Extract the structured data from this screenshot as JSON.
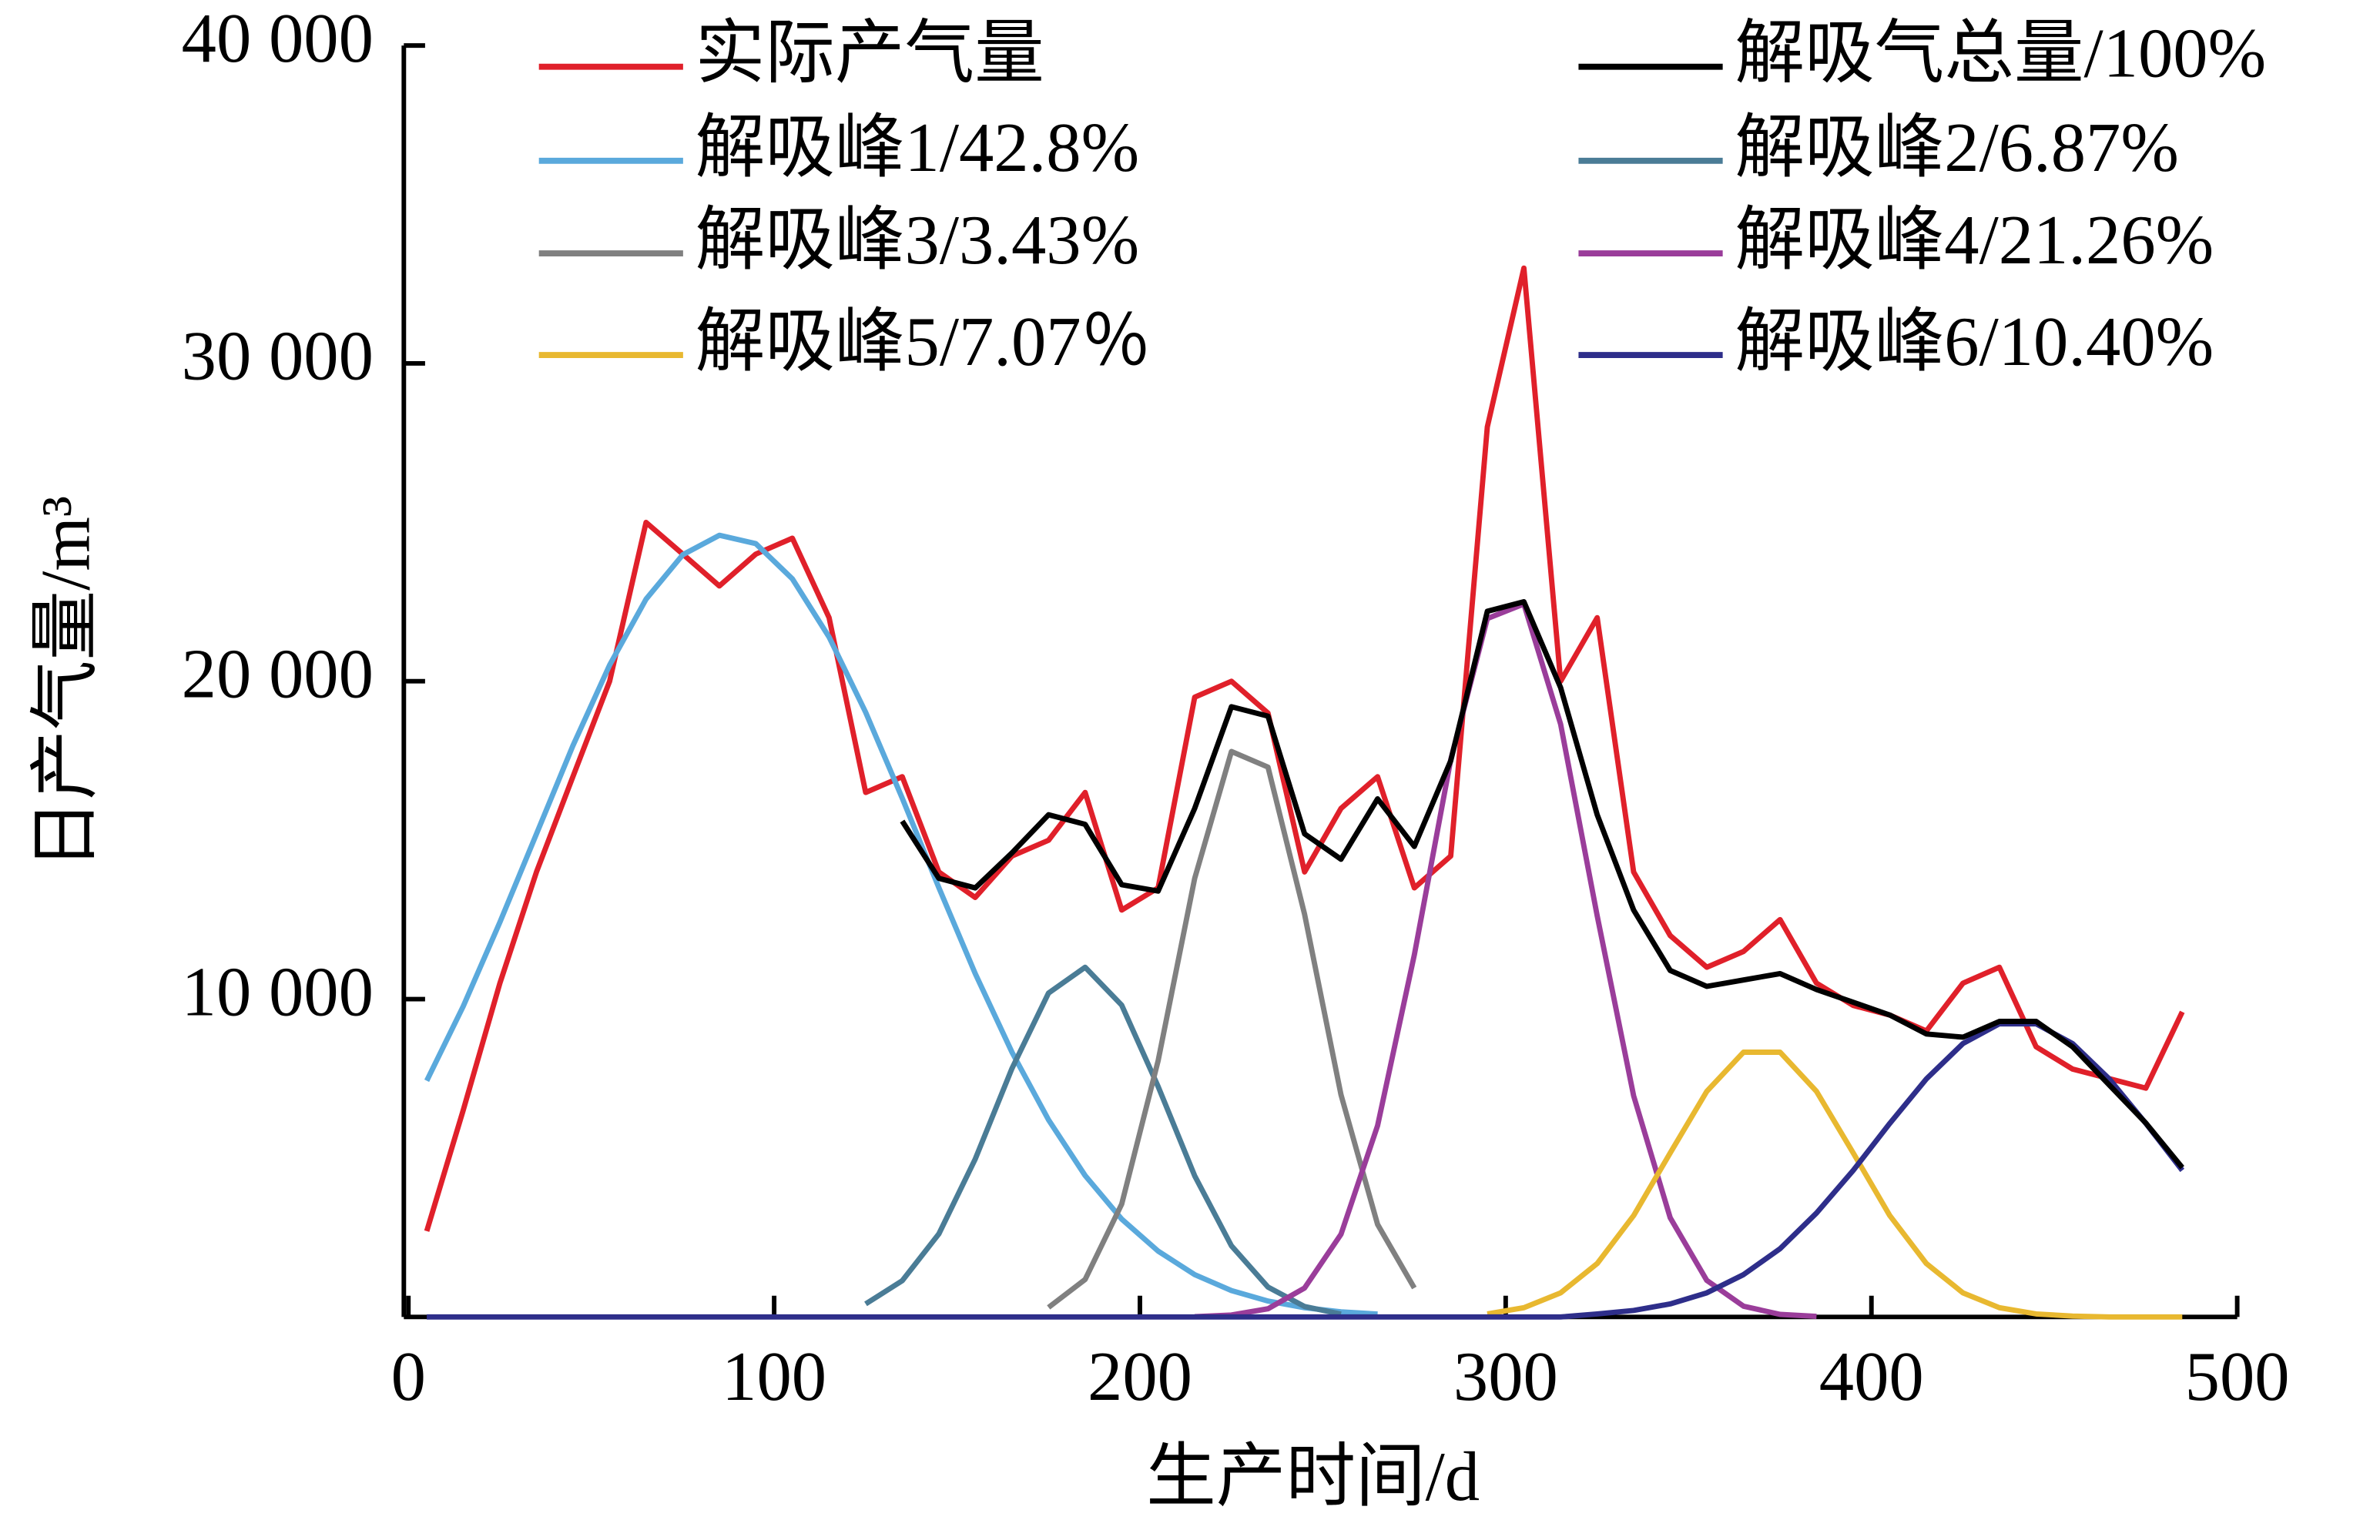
{
  "chart_data": {
    "type": "line",
    "x_label": "生产时间/d",
    "y_label": "日产气量/m³",
    "xlim": [
      0,
      500
    ],
    "ylim": [
      0,
      40000
    ],
    "xticks": [
      0,
      100,
      200,
      300,
      400,
      500
    ],
    "yticks": [
      {
        "value": 10000,
        "label": "10 000"
      },
      {
        "value": 20000,
        "label": "20 000"
      },
      {
        "value": 30000,
        "label": "30 000"
      },
      {
        "value": 40000,
        "label": "40 000"
      }
    ],
    "x": [
      5,
      15,
      25,
      35,
      45,
      55,
      65,
      75,
      85,
      95,
      105,
      115,
      125,
      135,
      145,
      155,
      165,
      175,
      185,
      195,
      205,
      215,
      225,
      235,
      245,
      255,
      265,
      275,
      285,
      295,
      305,
      315,
      325,
      335,
      345,
      355,
      365,
      375,
      385,
      395,
      405,
      415,
      425,
      435,
      445,
      455,
      465,
      475,
      485
    ],
    "series": [
      {
        "name": "实际产气量",
        "color": "#e0202a",
        "values": [
          2700,
          6500,
          10500,
          14000,
          17000,
          20000,
          25000,
          24000,
          23000,
          24000,
          24500,
          22000,
          16500,
          17000,
          14000,
          13200,
          14500,
          15000,
          16500,
          12800,
          13500,
          19500,
          20000,
          19000,
          14000,
          16000,
          17000,
          13500,
          14500,
          28000,
          33000,
          20000,
          22000,
          14000,
          12000,
          11000,
          11500,
          12500,
          10500,
          9800,
          9500,
          9000,
          10500,
          11000,
          8500,
          7800,
          7500,
          7200,
          9600
        ]
      },
      {
        "name": "解吸峰1/42.8%",
        "color": "#5aa9dc",
        "values": [
          7430,
          9770,
          12420,
          15200,
          17970,
          20510,
          22580,
          23980,
          24590,
          24330,
          23220,
          21390,
          19020,
          16320,
          13510,
          10800,
          8330,
          6200,
          4450,
          3080,
          2070,
          1330,
          830,
          500,
          290,
          160,
          90,
          null,
          null,
          null,
          null,
          null,
          null,
          null,
          null,
          null,
          null,
          null,
          null,
          null,
          null,
          null,
          null,
          null,
          null,
          null,
          null,
          null,
          null
        ]
      },
      {
        "name": "解吸峰2/6.87%",
        "color": "#4a7c96",
        "values": [
          null,
          null,
          null,
          null,
          null,
          null,
          null,
          null,
          null,
          null,
          null,
          null,
          410,
          1140,
          2610,
          4970,
          7820,
          10190,
          11000,
          9810,
          7250,
          4440,
          2240,
          940,
          330,
          90,
          null,
          null,
          null,
          null,
          null,
          null,
          null,
          null,
          null,
          null,
          null,
          null,
          null,
          null,
          null,
          null,
          null,
          null,
          null,
          null,
          null,
          null,
          null
        ]
      },
      {
        "name": "解吸峰3/3.43%",
        "color": "#808080",
        "values": [
          null,
          null,
          null,
          null,
          null,
          null,
          null,
          null,
          null,
          null,
          null,
          null,
          null,
          null,
          null,
          null,
          null,
          300,
          1180,
          3550,
          8060,
          13800,
          17790,
          17300,
          12670,
          6990,
          2910,
          910,
          null,
          null,
          null,
          null,
          null,
          null,
          null,
          null,
          null,
          null,
          null,
          null,
          null,
          null,
          null,
          null,
          null,
          null,
          null,
          null,
          null
        ]
      },
      {
        "name": "解吸峰4/21.26%",
        "color": "#9a3d9a",
        "values": [
          null,
          null,
          null,
          null,
          null,
          null,
          null,
          null,
          null,
          null,
          null,
          null,
          null,
          null,
          null,
          null,
          null,
          null,
          null,
          null,
          null,
          10,
          60,
          260,
          910,
          2600,
          6020,
          11390,
          17530,
          21970,
          22430,
          18650,
          12620,
          6960,
          3120,
          1150,
          340,
          80,
          20,
          null,
          null,
          null,
          null,
          null,
          null,
          null,
          null,
          null,
          null
        ]
      },
      {
        "name": "解吸峰5/7.07％",
        "color": "#e8b830",
        "values": [
          null,
          null,
          null,
          null,
          null,
          null,
          null,
          null,
          null,
          null,
          null,
          null,
          null,
          null,
          null,
          null,
          null,
          null,
          null,
          null,
          null,
          null,
          null,
          null,
          null,
          null,
          null,
          null,
          null,
          95,
          290,
          760,
          1680,
          3190,
          5160,
          7100,
          8330,
          8330,
          7100,
          5160,
          3190,
          1680,
          760,
          290,
          95,
          30,
          0,
          0,
          0
        ]
      },
      {
        "name": "解吸峰6/10.40%",
        "color": "#2e2e8a",
        "values": [
          0,
          0,
          0,
          0,
          0,
          0,
          0,
          0,
          0,
          0,
          0,
          0,
          0,
          0,
          0,
          0,
          0,
          0,
          0,
          0,
          0,
          0,
          0,
          0,
          0,
          0,
          0,
          0,
          0,
          0,
          0,
          0,
          95,
          205,
          410,
          760,
          1330,
          2150,
          3270,
          4610,
          6090,
          7490,
          8600,
          9220,
          9220,
          8600,
          7490,
          6090,
          4610
        ]
      },
      {
        "name": "解吸气总量/100%",
        "color": "#000000",
        "values": [
          null,
          null,
          null,
          null,
          null,
          null,
          null,
          null,
          null,
          null,
          null,
          null,
          null,
          15600,
          13800,
          13500,
          14600,
          15800,
          15500,
          13600,
          13400,
          16000,
          19200,
          18900,
          15200,
          14400,
          16300,
          14800,
          17500,
          22200,
          22500,
          19800,
          15800,
          12800,
          10900,
          10400,
          10600,
          10800,
          10300,
          9900,
          9500,
          8900,
          8800,
          9300,
          9300,
          8500,
          7300,
          6100,
          4700
        ]
      }
    ]
  }
}
